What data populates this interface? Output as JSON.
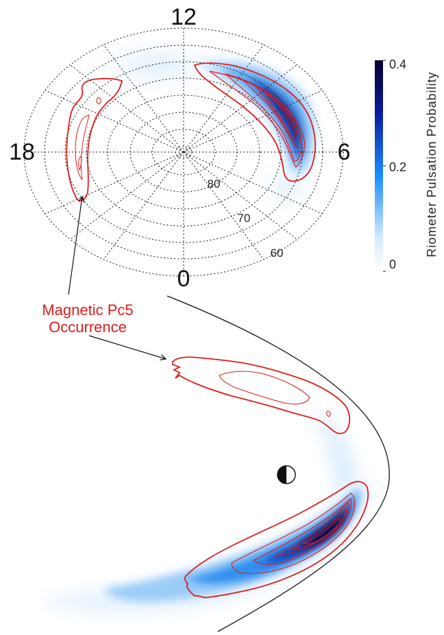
{
  "polar_plot": {
    "mlt_labels": {
      "noon": "12",
      "dusk": "18",
      "dawn": "6",
      "midnight": "0"
    },
    "latitude_labels": [
      "80",
      "70",
      "60"
    ]
  },
  "colorbar": {
    "label": "Riometer Pulsation Probability",
    "ticks": [
      "0.4",
      "0.2",
      "0"
    ],
    "max_value": 0.4,
    "colors": {
      "low": "#ffffff",
      "mid": "#1b8fff",
      "high": "#06002e"
    }
  },
  "annotation": {
    "line1": "Magnetic Pc5",
    "line2": "Occurrence",
    "color": "#e01b1b"
  },
  "colors": {
    "contour_red": "#e01b1b",
    "probability_blue": "#1b8fff"
  }
}
